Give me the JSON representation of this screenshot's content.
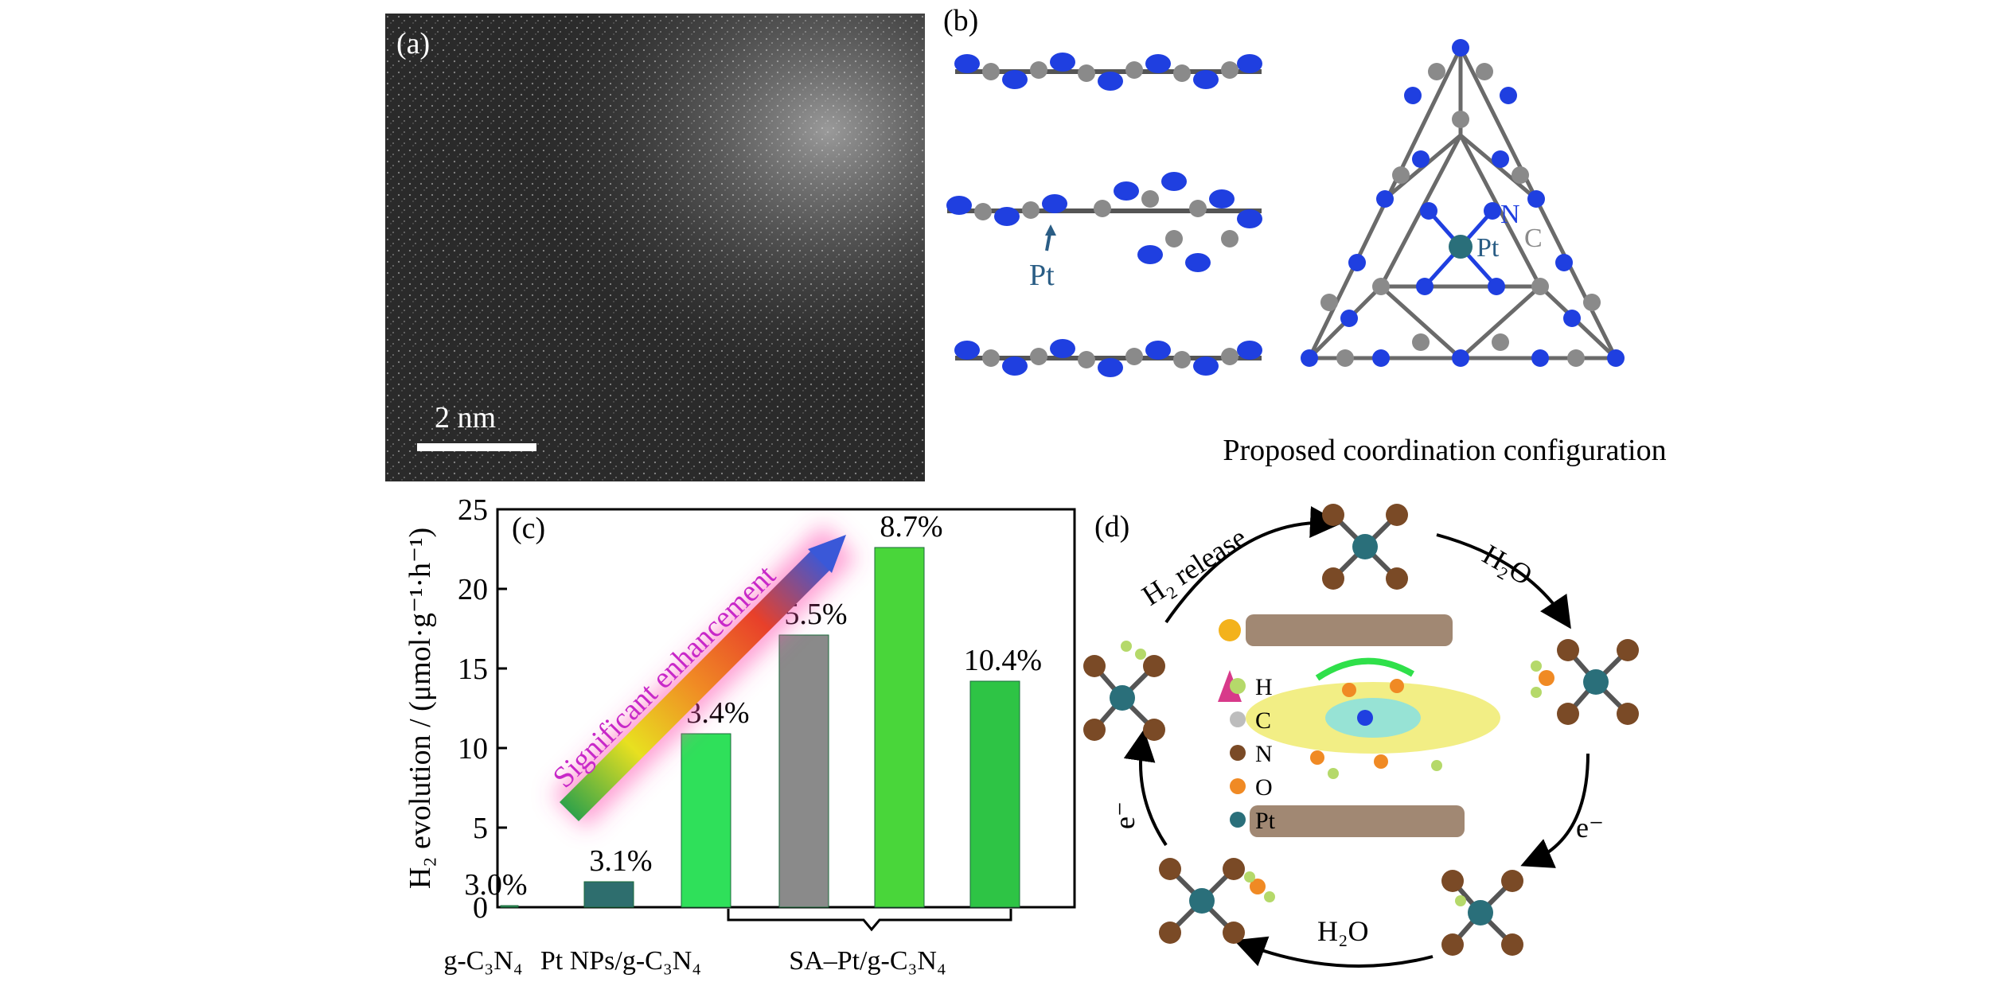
{
  "figure": {
    "panel_a": {
      "label": "(a)",
      "scale_bar": "2 nm"
    },
    "panel_b": {
      "label": "(b)",
      "pt_label_side": "Pt",
      "pt_label_top": "Pt",
      "n_label": "N",
      "c_label": "C",
      "caption": "Proposed coordination configuration"
    },
    "panel_c": {
      "label": "(c)",
      "arrow_text": "Significant enhancement",
      "group_label_1": "g-C₃N₄",
      "group_label_2": "Pt NPs/g-C₃N₄",
      "group_label_3": "SA–Pt/g-C₃N₄"
    },
    "panel_d": {
      "label": "(d)",
      "h2_release": "H₂ release",
      "h2o_top": "H₂O",
      "h2o_bottom": "H₂O",
      "e_right": "e⁻",
      "e_left": "e⁻",
      "legend": [
        {
          "label": "H",
          "color": "#b5d96a"
        },
        {
          "label": "C",
          "color": "#bdbdbd"
        },
        {
          "label": "N",
          "color": "#7a4a26"
        },
        {
          "label": "O",
          "color": "#f08a24"
        },
        {
          "label": "Pt",
          "color": "#2a6f7a"
        }
      ]
    }
  },
  "chart_data": {
    "type": "bar",
    "categories": [
      "g-C₃N₄",
      "Pt NPs/g-C₃N₄",
      "SA–Pt/g-C₃N₄ (1)",
      "SA–Pt/g-C₃N₄ (2)",
      "SA–Pt/g-C₃N₄ (3)",
      "SA–Pt/g-C₃N₄ (4)"
    ],
    "values": [
      0.1,
      1.6,
      10.9,
      17.1,
      22.6,
      14.2
    ],
    "data_labels": [
      "3.0%",
      "3.1%",
      "3.4%",
      "5.5%",
      "8.7%",
      "10.4%"
    ],
    "bar_colors": [
      "#2f8a5a",
      "#2e6e6e",
      "#2fe05a",
      "#8a8a8a",
      "#49d63a",
      "#2ec445"
    ],
    "ylabel": "H₂ evolution / (μmol·g⁻¹·h⁻¹)",
    "xlabel": "",
    "ylim": [
      0,
      25
    ],
    "yticks": [
      0,
      5,
      10,
      15,
      20,
      25
    ],
    "grid": false
  }
}
